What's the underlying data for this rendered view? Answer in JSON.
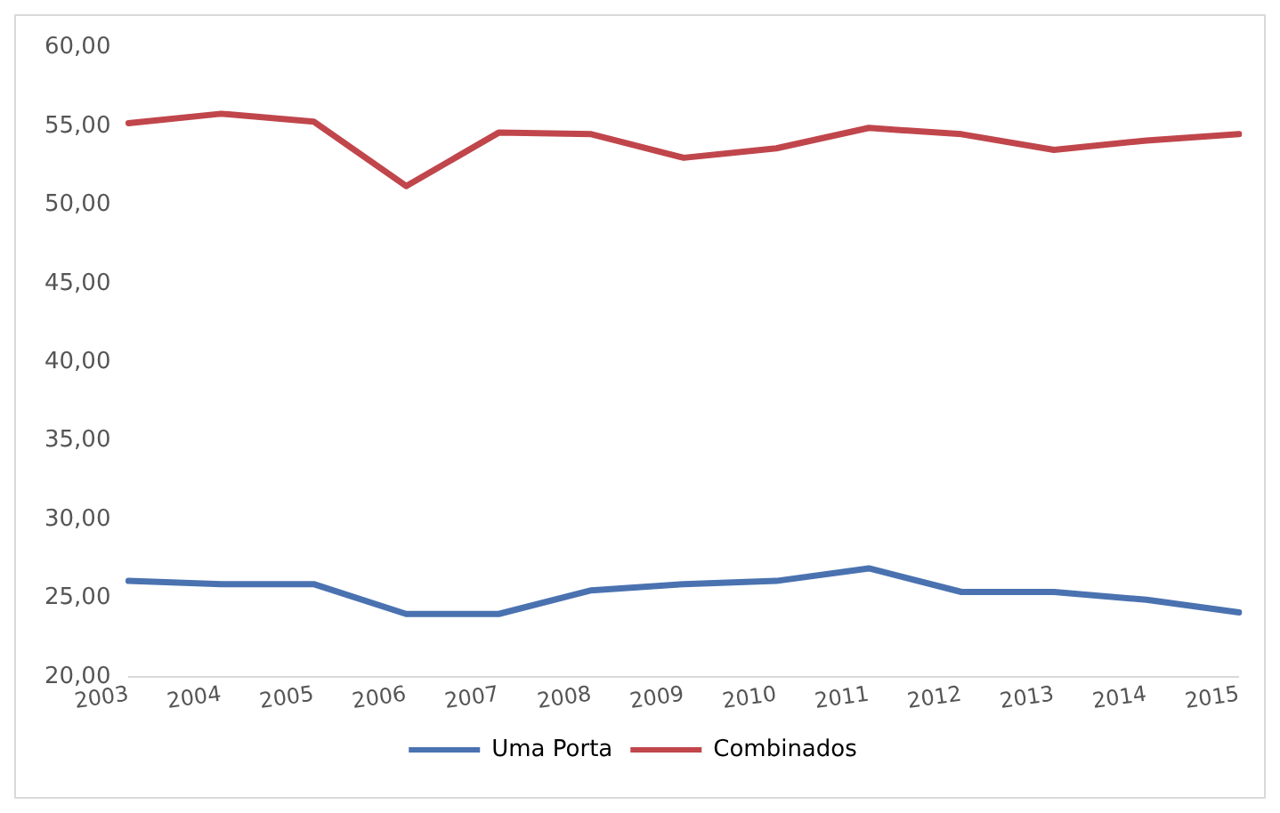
{
  "chart_data": {
    "type": "line",
    "categories": [
      "2003",
      "2004",
      "2005",
      "2006",
      "2007",
      "2008",
      "2009",
      "2010",
      "2011",
      "2012",
      "2013",
      "2014",
      "2015"
    ],
    "series": [
      {
        "name": "Uma Porta",
        "color": "#4a72b0",
        "values": [
          26.1,
          25.9,
          25.9,
          24.0,
          24.0,
          25.5,
          25.9,
          26.1,
          26.9,
          25.4,
          25.4,
          24.9,
          24.1
        ]
      },
      {
        "name": "Combinados",
        "color": "#c0464c",
        "values": [
          55.2,
          55.8,
          55.3,
          51.2,
          54.6,
          54.5,
          53.0,
          53.6,
          54.9,
          54.5,
          53.5,
          54.1,
          54.5
        ]
      }
    ],
    "ylim": [
      20,
      60
    ],
    "yticks": [
      {
        "value": 20,
        "label": "20,00"
      },
      {
        "value": 25,
        "label": "25,00"
      },
      {
        "value": 30,
        "label": "30,00"
      },
      {
        "value": 35,
        "label": "35,00"
      },
      {
        "value": 40,
        "label": "40,00"
      },
      {
        "value": 45,
        "label": "45,00"
      },
      {
        "value": 50,
        "label": "50,00"
      },
      {
        "value": 55,
        "label": "55,00"
      },
      {
        "value": 60,
        "label": "60,00"
      }
    ],
    "grid": false,
    "legend": "bottom",
    "marker": "none",
    "line_style": "solid"
  }
}
